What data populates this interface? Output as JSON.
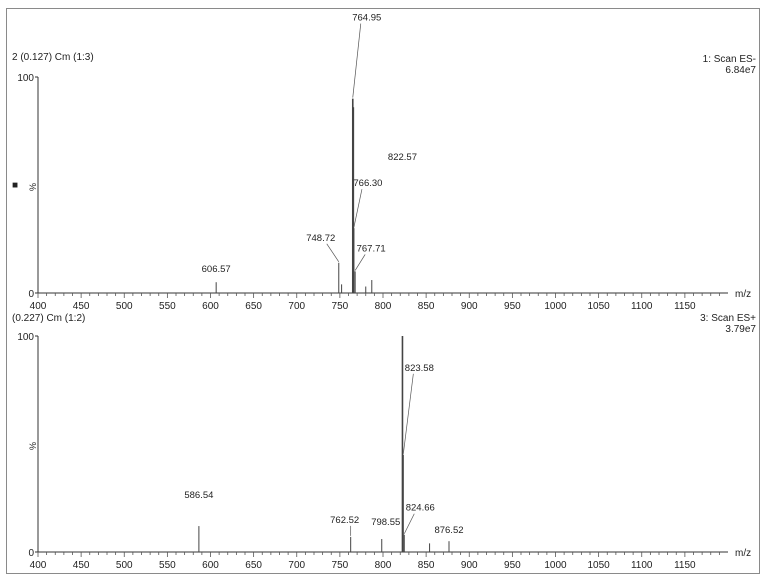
{
  "chart_data": [
    {
      "type": "bar",
      "header_left": "2 (0.127) Cm (1:3)",
      "header_right_line1": "1: Scan ES-",
      "header_right_line2": "6.84e7",
      "ylabel": "%",
      "xlabel": "m/z",
      "xlim": [
        400,
        1200
      ],
      "ylim": [
        0,
        100
      ],
      "yticks": [
        "100",
        "0"
      ],
      "xticks": [
        "400",
        "450",
        "500",
        "550",
        "600",
        "650",
        "700",
        "750",
        "800",
        "850",
        "900",
        "950",
        "1000",
        "1050",
        "1100",
        "1150"
      ],
      "legend_marker": "■",
      "peaks": [
        {
          "mz": 606.57,
          "intensity": 5,
          "label": "606.57"
        },
        {
          "mz": 748.72,
          "intensity": 14,
          "label": "748.72"
        },
        {
          "mz": 752.0,
          "intensity": 4
        },
        {
          "mz": 764.95,
          "intensity": 90,
          "label": "764.95"
        },
        {
          "mz": 765.6,
          "intensity": 86
        },
        {
          "mz": 766.3,
          "intensity": 30,
          "label": "766.30"
        },
        {
          "mz": 767.71,
          "intensity": 10,
          "label": "767.71"
        },
        {
          "mz": 780.0,
          "intensity": 3
        },
        {
          "mz": 787.0,
          "intensity": 6
        }
      ]
    },
    {
      "type": "bar",
      "header_left": "(0.227) Cm (1:2)",
      "header_right_line1": "3: Scan ES+",
      "header_right_line2": "3.79e7",
      "ylabel": "%",
      "xlabel": "m/z",
      "xlim": [
        400,
        1200
      ],
      "ylim": [
        0,
        100
      ],
      "yticks": [
        "100",
        "0"
      ],
      "xticks": [
        "400",
        "450",
        "500",
        "550",
        "600",
        "650",
        "700",
        "750",
        "800",
        "850",
        "900",
        "950",
        "1000",
        "1050",
        "1100",
        "1150"
      ],
      "peaks": [
        {
          "mz": 586.54,
          "intensity": 12,
          "label": "586.54"
        },
        {
          "mz": 762.52,
          "intensity": 7,
          "label": "762.52"
        },
        {
          "mz": 798.55,
          "intensity": 6,
          "label": "798.55"
        },
        {
          "mz": 822.57,
          "intensity": 100,
          "label": "822.57"
        },
        {
          "mz": 823.58,
          "intensity": 45,
          "label": "823.58"
        },
        {
          "mz": 824.66,
          "intensity": 8,
          "label": "824.66"
        },
        {
          "mz": 854.0,
          "intensity": 4
        },
        {
          "mz": 876.52,
          "intensity": 5,
          "label": "876.52"
        }
      ]
    }
  ]
}
